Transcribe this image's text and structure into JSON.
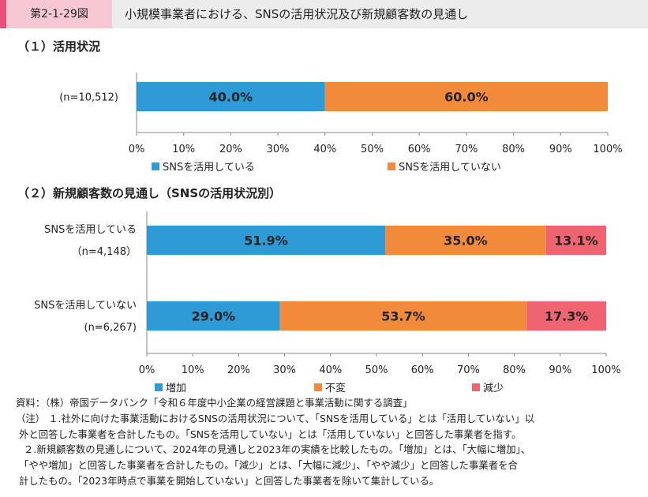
{
  "header": {
    "figure_no": "第2-1-29図",
    "title": "小規模事業者における、SNSの活用状況及び新規顧客数の見通し"
  },
  "colors": {
    "blue": "#2e9bd6",
    "orange": "#f28a3b",
    "red": "#ee6470",
    "axis": "#888888"
  },
  "chart_data": [
    {
      "type": "bar",
      "orientation": "horizontal",
      "stacked": true,
      "title": "（１）活用状況",
      "categories": [
        "(n=10,512)"
      ],
      "series": [
        {
          "name": "SNSを活用している",
          "values": [
            40.0
          ],
          "labels": [
            "40.0%"
          ],
          "color": "#2e9bd6"
        },
        {
          "name": "SNSを活用していない",
          "values": [
            60.0
          ],
          "labels": [
            "60.0%"
          ],
          "color": "#f28a3b"
        }
      ],
      "xticks": [
        "0%",
        "10%",
        "20%",
        "30%",
        "40%",
        "50%",
        "60%",
        "70%",
        "80%",
        "90%",
        "100%"
      ],
      "xlim": [
        0,
        100
      ],
      "legend": "bottom"
    },
    {
      "type": "bar",
      "orientation": "horizontal",
      "stacked": true,
      "title": "（２）新規顧客数の見通し（SNSの活用状況別）",
      "categories": [
        {
          "name": "SNSを活用している",
          "n": "（n=4,148）"
        },
        {
          "name": "SNSを活用していない",
          "n": "(n=6,267)"
        }
      ],
      "series": [
        {
          "name": "増加",
          "values": [
            51.9,
            29.0
          ],
          "labels": [
            "51.9%",
            "29.0%"
          ],
          "color": "#2e9bd6"
        },
        {
          "name": "不変",
          "values": [
            35.0,
            53.7
          ],
          "labels": [
            "35.0%",
            "53.7%"
          ],
          "color": "#f28a3b"
        },
        {
          "name": "減少",
          "values": [
            13.1,
            17.3
          ],
          "labels": [
            "13.1%",
            "17.3%"
          ],
          "color": "#ee6470"
        }
      ],
      "xticks": [
        "0%",
        "10%",
        "20%",
        "30%",
        "40%",
        "50%",
        "60%",
        "70%",
        "80%",
        "90%",
        "100%"
      ],
      "xlim": [
        0,
        100
      ],
      "legend": "bottom"
    }
  ],
  "notes": [
    "資料：（株）帝国データバンク「令和６年度中小企業の経営課題と事業活動に関する調査」",
    "（注） １.社外に向けた事業活動におけるSNSの活用状況について、「SNSを活用している」とは「活用していない」以",
    "外と回答した事業者を合計したもの。「SNSを活用していない」とは「活用していない」と回答した事業者を指す。",
    "２.新規顧客数の見通しについて、2024年の見通しと2023年の実績を比較したもの。「増加」とは、「大幅に増加」、",
    "「やや増加」と回答した事業者を合計したもの。「減少」とは、「大幅に減少」、「やや減少」と回答した事業者を合",
    "計したもの。「2023年時点で事業を開始していない」と回答した事業者を除いて集計している。"
  ]
}
